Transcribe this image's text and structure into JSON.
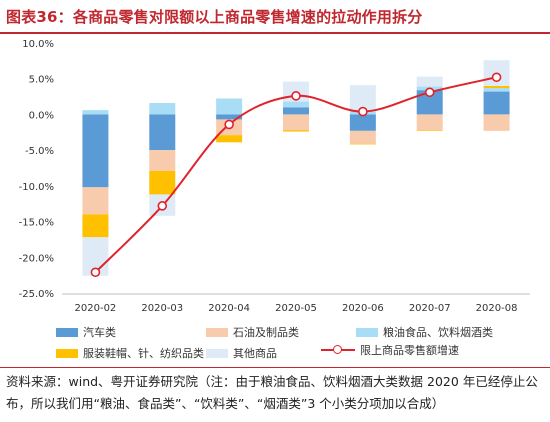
{
  "title": "图表36：各商品零售对限额以上商品零售增速的拉动作用拆分",
  "source": "资料来源：wind、粤开证券研究院（注：由于粮油食品、饮料烟酒大类数据 2020 年已经停止公布，所以我们用“粮油、食品类”、“饮料类”、“烟酒类”3 个小类分项加以合成）",
  "colors": {
    "auto": "#5b9bd5",
    "petroleum": "#f8cbad",
    "grain": "#a9dcf5",
    "clothing": "#ffc000",
    "other": "#deebf7",
    "line": "#e0232a",
    "title": "#c0282f"
  },
  "chart_data": {
    "type": "bar",
    "stacked": true,
    "categories": [
      "2020-02",
      "2020-03",
      "2020-04",
      "2020-05",
      "2020-06",
      "2020-07",
      "2020-08"
    ],
    "ylim": [
      -25,
      10
    ],
    "yticks": [
      "10.0%",
      "5.0%",
      "0.0%",
      "-5.0%",
      "-10.0%",
      "-15.0%",
      "-20.0%",
      "-25.0%"
    ],
    "ytick_values": [
      10,
      5,
      0,
      -5,
      -10,
      -15,
      -20,
      -25
    ],
    "grid": false,
    "legend_position": "bottom",
    "series": [
      {
        "key": "auto",
        "name": "汽车类",
        "values": [
          -10.2,
          -5.0,
          -0.7,
          1.0,
          -2.3,
          3.4,
          3.2
        ]
      },
      {
        "key": "petroleum",
        "name": "石油及制品类",
        "values": [
          -3.8,
          -2.9,
          -2.2,
          -2.2,
          -1.8,
          -2.2,
          -2.3
        ]
      },
      {
        "key": "grain",
        "name": "粮油食品、饮料烟酒类",
        "values": [
          0.6,
          1.6,
          2.2,
          0.8,
          0.4,
          0.5,
          0.5
        ]
      },
      {
        "key": "clothing",
        "name": "服装鞋帽、针、纺织品类",
        "values": [
          -3.2,
          -3.3,
          -1.0,
          -0.2,
          -0.1,
          -0.1,
          0.3
        ]
      },
      {
        "key": "other",
        "name": "其他商品",
        "values": [
          -5.4,
          -3.0,
          0.1,
          2.8,
          3.7,
          1.4,
          3.6
        ]
      }
    ],
    "line": {
      "name": "限上商品零售额增速",
      "values": [
        -22.1,
        -12.8,
        -1.4,
        2.6,
        0.4,
        3.1,
        5.2
      ]
    }
  }
}
